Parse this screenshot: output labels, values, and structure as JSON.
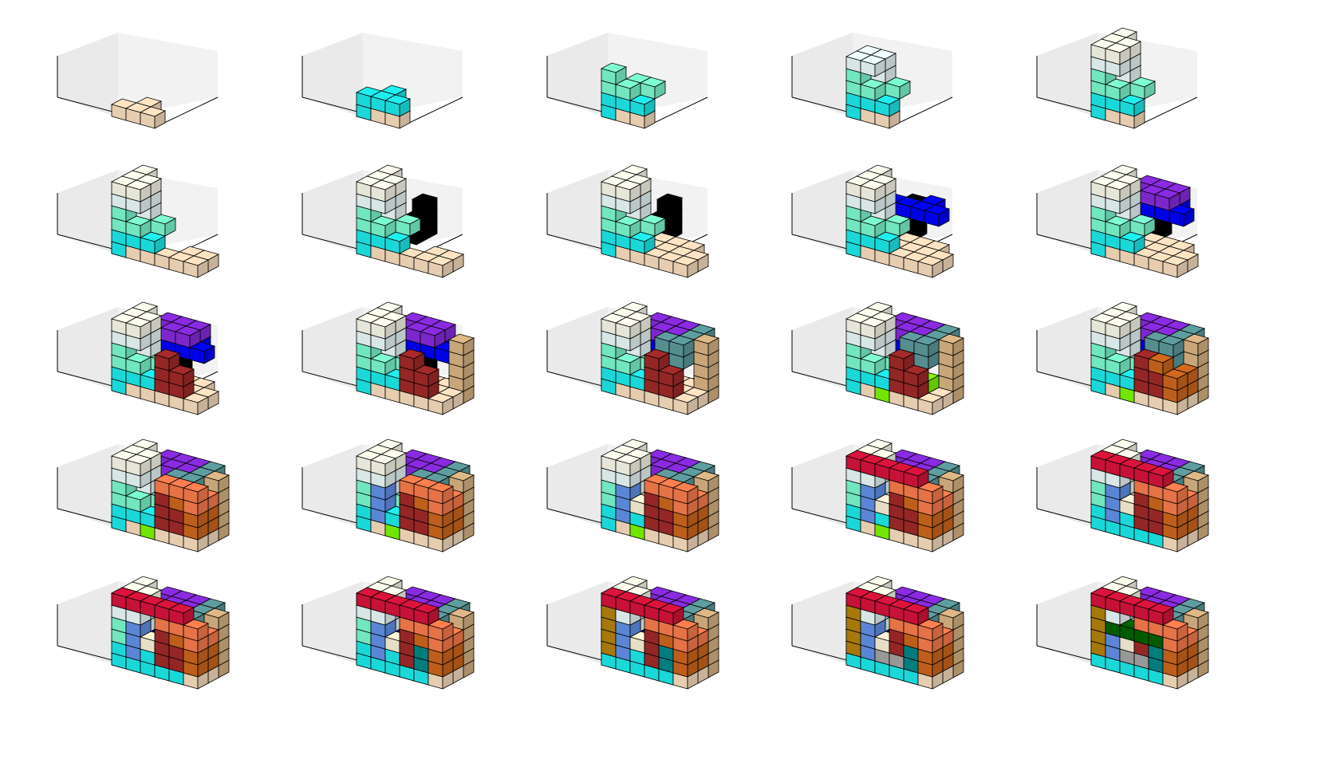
{
  "figure": {
    "rows": 5,
    "cols": 5,
    "projection": "3d",
    "axes_visible": false,
    "pane_color": "#f2f2f2",
    "edge_color": "#000000"
  },
  "palette": {
    "bisque": "#ffe4c4",
    "cyan": "#1ef0f0",
    "aquamarine": "#7fffd4",
    "azure": "#f0ffff",
    "ivory": "#fffff0",
    "black": "#000000",
    "blue": "#0000ff",
    "blueviolet": "#8a2be2",
    "brown": "#a52a2a",
    "burlywood": "#deb887",
    "cadetblue": "#5f9ea0",
    "chartreuse": "#7fff00",
    "chocolate": "#d2691e",
    "coral": "#ff7f50",
    "cornflowerblue": "#6495ed",
    "cornsilk": "#fff8dc",
    "crimson": "#dc143c",
    "darkblue": "#00008b",
    "darkcyan": "#008b8b",
    "darkgoldenrod": "#b8860b",
    "darkgray": "#a9a9a9",
    "darkgreen": "#006400"
  },
  "pieces": [
    {
      "id": 1,
      "color": "bisque",
      "cells": [
        [
          0,
          0,
          0
        ],
        [
          1,
          0,
          0
        ],
        [
          2,
          0,
          0
        ],
        [
          1,
          1,
          0
        ]
      ]
    },
    {
      "id": 2,
      "color": "cyan",
      "cells": [
        [
          0,
          0,
          1
        ],
        [
          1,
          0,
          1
        ],
        [
          2,
          0,
          1
        ],
        [
          1,
          1,
          1
        ],
        [
          0,
          0,
          0
        ]
      ]
    },
    {
      "id": 3,
      "color": "aquamarine",
      "cells": [
        [
          0,
          0,
          2
        ],
        [
          1,
          0,
          2
        ],
        [
          0,
          0,
          3
        ],
        [
          1,
          1,
          2
        ],
        [
          2,
          1,
          2
        ]
      ]
    },
    {
      "id": 4,
      "color": "azure",
      "cells": [
        [
          0,
          0,
          4
        ],
        [
          1,
          0,
          4
        ],
        [
          1,
          1,
          3
        ],
        [
          1,
          1,
          4
        ],
        [
          0,
          1,
          4
        ]
      ]
    },
    {
      "id": 5,
      "color": "ivory",
      "cells": [
        [
          0,
          0,
          5
        ],
        [
          1,
          0,
          5
        ],
        [
          0,
          1,
          5
        ],
        [
          1,
          1,
          5
        ],
        [
          0,
          2,
          5
        ]
      ]
    },
    {
      "id": 6,
      "color": "bisque",
      "cells": [
        [
          3,
          0,
          0
        ],
        [
          4,
          0,
          0
        ],
        [
          5,
          0,
          0
        ],
        [
          4,
          1,
          0
        ],
        [
          5,
          1,
          0
        ]
      ]
    },
    {
      "id": 7,
      "color": "black",
      "cells": [
        [
          1,
          3,
          0
        ],
        [
          1,
          3,
          1
        ],
        [
          1,
          4,
          0
        ],
        [
          1,
          4,
          1
        ],
        [
          1,
          4,
          2
        ]
      ]
    },
    {
      "id": 8,
      "color": "bisque",
      "cells": [
        [
          2,
          1,
          0
        ],
        [
          3,
          1,
          0
        ],
        [
          2,
          2,
          0
        ],
        [
          3,
          2,
          0
        ],
        [
          4,
          2,
          0
        ]
      ]
    },
    {
      "id": 9,
      "color": "blue",
      "cells": [
        [
          1,
          2,
          3
        ],
        [
          2,
          2,
          3
        ],
        [
          3,
          2,
          3
        ],
        [
          4,
          2,
          3
        ],
        [
          3,
          3,
          3
        ]
      ]
    },
    {
      "id": 10,
      "color": "blueviolet",
      "cells": [
        [
          1,
          3,
          4
        ],
        [
          2,
          3,
          4
        ],
        [
          3,
          3,
          4
        ],
        [
          2,
          2,
          4
        ],
        [
          3,
          2,
          4
        ]
      ]
    },
    {
      "id": 11,
      "color": "brown",
      "cells": [
        [
          3,
          0,
          1
        ],
        [
          3,
          0,
          2
        ],
        [
          3,
          0,
          3
        ],
        [
          4,
          0,
          1
        ],
        [
          4,
          0,
          2
        ]
      ]
    },
    {
      "id": 12,
      "color": "burlywood",
      "cells": [
        [
          5,
          2,
          0
        ],
        [
          5,
          2,
          1
        ],
        [
          5,
          2,
          2
        ],
        [
          5,
          2,
          3
        ],
        [
          5,
          2,
          4
        ]
      ]
    },
    {
      "id": 13,
      "color": "cadetblue",
      "cells": [
        [
          3,
          1,
          4
        ],
        [
          4,
          1,
          4
        ],
        [
          4,
          2,
          4
        ],
        [
          4,
          3,
          4
        ],
        [
          4,
          1,
          3
        ]
      ]
    },
    {
      "id": 14,
      "color": "chartreuse",
      "cells": [
        [
          1,
          1,
          0
        ],
        [
          2,
          1,
          0
        ],
        [
          3,
          1,
          0
        ],
        [
          4,
          1,
          1
        ],
        [
          2,
          0,
          0
        ]
      ]
    },
    {
      "id": 15,
      "color": "chocolate",
      "cells": [
        [
          4,
          0,
          3
        ],
        [
          5,
          0,
          1
        ],
        [
          5,
          0,
          2
        ],
        [
          5,
          1,
          1
        ],
        [
          5,
          1,
          2
        ]
      ]
    },
    {
      "id": 16,
      "color": "coral",
      "cells": [
        [
          3,
          0,
          4
        ],
        [
          4,
          0,
          4
        ],
        [
          5,
          0,
          4
        ],
        [
          5,
          0,
          3
        ],
        [
          5,
          1,
          3
        ]
      ]
    },
    {
      "id": 17,
      "color": "cornflowerblue",
      "cells": [
        [
          1,
          0,
          1
        ],
        [
          1,
          0,
          2
        ],
        [
          1,
          0,
          3
        ],
        [
          1,
          1,
          1
        ],
        [
          1,
          1,
          2
        ]
      ]
    },
    {
      "id": 18,
      "color": "cornsilk",
      "cells": [
        [
          2,
          0,
          2
        ],
        [
          3,
          1,
          2
        ],
        [
          4,
          1,
          2
        ],
        [
          2,
          1,
          2
        ],
        [
          2,
          1,
          1
        ]
      ]
    },
    {
      "id": 19,
      "color": "crimson",
      "cells": [
        [
          0,
          0,
          5
        ],
        [
          1,
          0,
          5
        ],
        [
          2,
          0,
          5
        ],
        [
          3,
          0,
          5
        ],
        [
          4,
          0,
          5
        ]
      ]
    },
    {
      "id": 20,
      "color": "cyan",
      "cells": [
        [
          1,
          0,
          0
        ],
        [
          2,
          0,
          0
        ],
        [
          3,
          0,
          0
        ],
        [
          4,
          0,
          0
        ],
        [
          2,
          1,
          0
        ]
      ]
    },
    {
      "id": 21,
      "color": "darkblue",
      "cells": [
        [
          2,
          1,
          1
        ],
        [
          2,
          1,
          2
        ],
        [
          3,
          1,
          1
        ],
        [
          3,
          1,
          2
        ],
        [
          3,
          2,
          1
        ]
      ]
    },
    {
      "id": 22,
      "color": "darkcyan",
      "cells": [
        [
          4,
          1,
          1
        ],
        [
          4,
          1,
          2
        ],
        [
          4,
          2,
          2
        ],
        [
          4,
          0,
          2
        ],
        [
          4,
          0,
          1
        ]
      ]
    },
    {
      "id": 23,
      "color": "darkgoldenrod",
      "cells": [
        [
          0,
          0,
          1
        ],
        [
          0,
          0,
          2
        ],
        [
          0,
          0,
          3
        ],
        [
          0,
          0,
          4
        ],
        [
          0,
          1,
          1
        ]
      ]
    },
    {
      "id": 24,
      "color": "darkgray",
      "cells": [
        [
          1,
          1,
          1
        ],
        [
          2,
          1,
          1
        ],
        [
          3,
          1,
          1
        ],
        [
          3,
          0,
          1
        ],
        [
          2,
          0,
          1
        ]
      ]
    },
    {
      "id": 25,
      "color": "darkgreen",
      "cells": [
        [
          1,
          0,
          3
        ],
        [
          2,
          0,
          3
        ],
        [
          3,
          0,
          3
        ],
        [
          4,
          0,
          3
        ],
        [
          3,
          1,
          3
        ]
      ]
    }
  ]
}
